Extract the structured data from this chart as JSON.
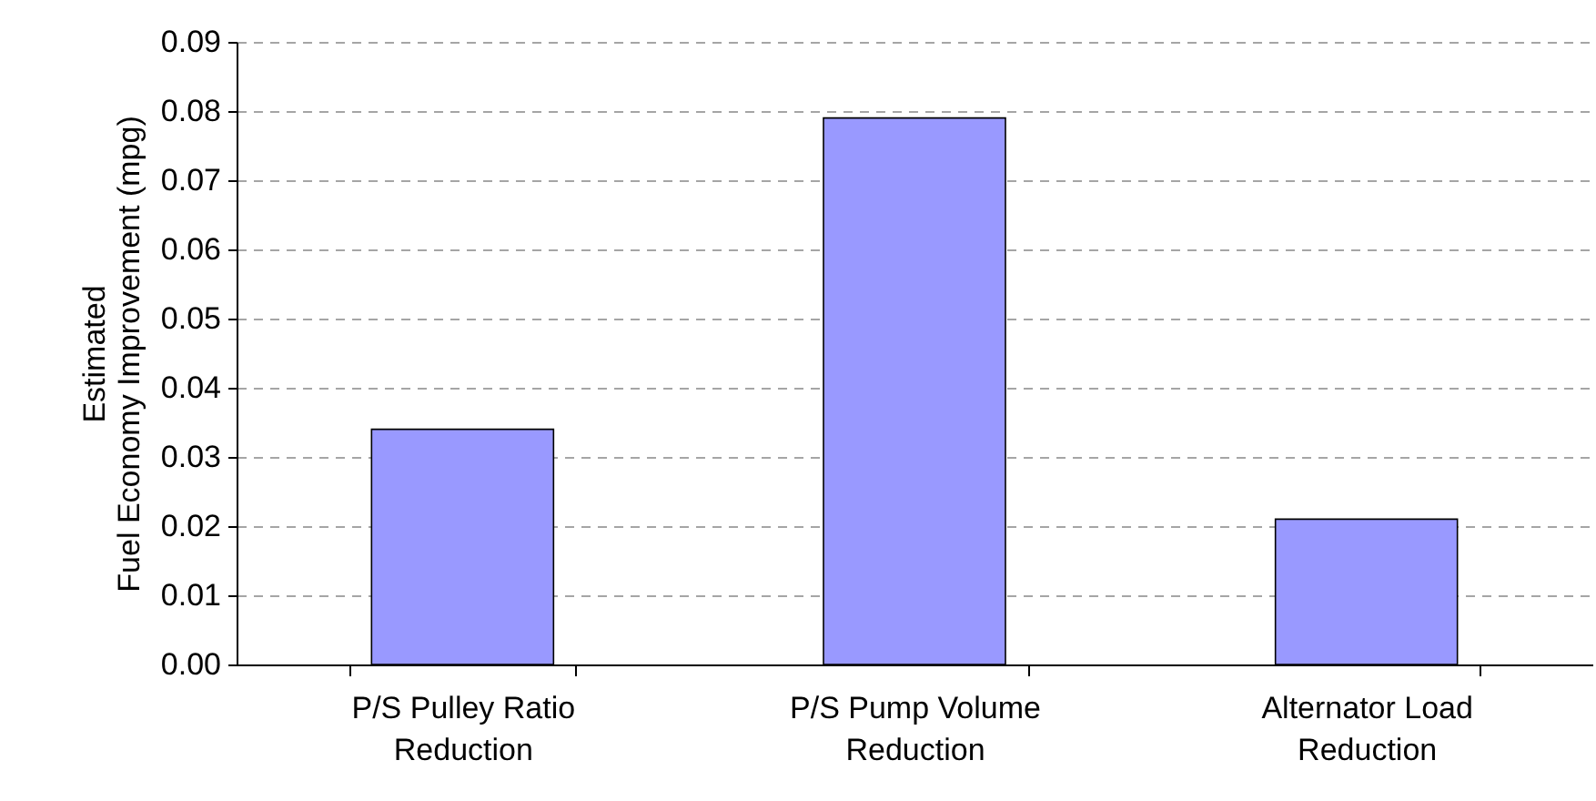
{
  "chart_data": {
    "type": "bar",
    "ylabel": "Estimated\nFuel Economy Improvement  (mpg)",
    "categories": [
      "P/S Pulley Ratio\nReduction",
      "P/S Pump Volume\nReduction",
      "Alternator Load\nReduction"
    ],
    "values": [
      0.034,
      0.079,
      0.021
    ],
    "color": "#9999ff",
    "ylim": [
      0,
      0.09
    ],
    "yticks": [
      {
        "value": 0,
        "label": "0.00"
      },
      {
        "value": 0.01,
        "label": "0.01"
      },
      {
        "value": 0.02,
        "label": "0.02"
      },
      {
        "value": 0.03,
        "label": "0.03"
      },
      {
        "value": 0.04,
        "label": "0.04"
      },
      {
        "value": 0.05,
        "label": "0.05"
      },
      {
        "value": 0.06,
        "label": "0.06"
      },
      {
        "value": 0.07,
        "label": "0.07"
      },
      {
        "value": 0.08,
        "label": "0.08"
      },
      {
        "value": 0.09,
        "label": "0.09"
      }
    ],
    "grid": "y"
  }
}
